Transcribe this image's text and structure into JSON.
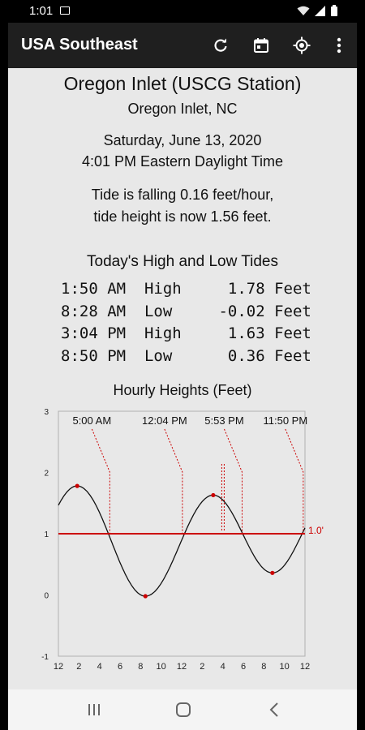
{
  "status": {
    "time": "1:01"
  },
  "app_bar": {
    "title": "USA Southeast"
  },
  "station": {
    "name": "Oregon Inlet (USCG Station)",
    "location": "Oregon Inlet, NC"
  },
  "datetime": {
    "date": "Saturday, June 13, 2020",
    "time": "4:01 PM Eastern Daylight Time"
  },
  "tide_status": {
    "line1": "Tide is falling 0.16 feet/hour,",
    "line2": "tide height is now  1.56 feet."
  },
  "tides": {
    "header": "Today's High and Low Tides",
    "rows": [
      {
        "time": "1:50 AM",
        "type": "High",
        "height": "1.78",
        "unit": "Feet"
      },
      {
        "time": "8:28 AM",
        "type": "Low",
        "height": "-0.02",
        "unit": "Feet"
      },
      {
        "time": "3:04 PM",
        "type": "High",
        "height": "1.63",
        "unit": "Feet"
      },
      {
        "time": "8:50 PM",
        "type": "Low",
        "height": "0.36",
        "unit": "Feet"
      }
    ]
  },
  "chart_data": {
    "type": "line",
    "title": "Hourly Heights (Feet)",
    "xlim": [
      0,
      24
    ],
    "ylim": [
      -1,
      3
    ],
    "y_ticks": [
      "3",
      "2",
      "1",
      "0",
      "-1"
    ],
    "x_ticks": [
      "12",
      "2",
      "4",
      "6",
      "8",
      "10",
      "12",
      "2",
      "4",
      "6",
      "8",
      "10",
      "12"
    ],
    "extremes": [
      {
        "hour": 1.83,
        "height": 1.78
      },
      {
        "hour": 8.47,
        "height": -0.02
      },
      {
        "hour": 15.07,
        "height": 1.63
      },
      {
        "hour": 20.83,
        "height": 0.36
      }
    ],
    "reference": {
      "value": 1.0,
      "label": "1.0'",
      "color": "#cc0000"
    },
    "annotations": [
      {
        "label": "5:00 AM",
        "hour": 5.0
      },
      {
        "label": "12:04 PM",
        "hour": 12.07
      },
      {
        "label": "5:53 PM",
        "hour": 17.88
      },
      {
        "label": "11:50 PM",
        "hour": 23.83
      }
    ],
    "current_hour": 16.02,
    "curve_color": "#111111",
    "marker_color": "#cc0000"
  }
}
